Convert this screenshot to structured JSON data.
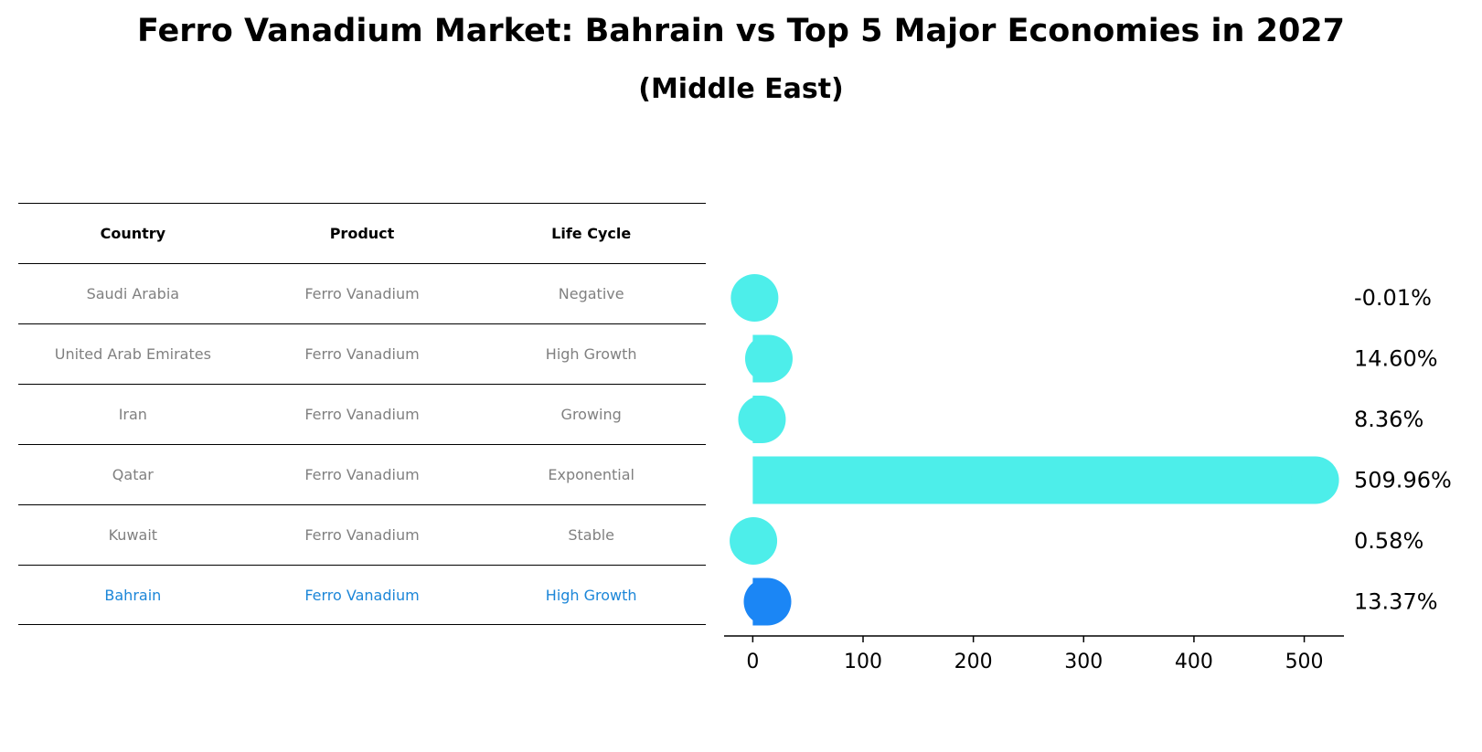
{
  "title": "Ferro Vanadium Market: Bahrain vs Top 5 Major Economies in 2027",
  "subtitle": "(Middle East)",
  "table": {
    "headers": [
      "Country",
      "Product",
      "Life Cycle"
    ],
    "rows": [
      [
        "Saudi Arabia",
        "Ferro Vanadium",
        "Negative"
      ],
      [
        "United Arab Emirates",
        "Ferro Vanadium",
        "High Growth"
      ],
      [
        "Iran",
        "Ferro Vanadium",
        "Growing"
      ],
      [
        "Qatar",
        "Ferro Vanadium",
        "Exponential"
      ],
      [
        "Kuwait",
        "Ferro Vanadium",
        "Stable"
      ],
      [
        "Bahrain",
        "Ferro Vanadium",
        "High Growth"
      ]
    ]
  },
  "colors": {
    "bar": "#4deeea",
    "highlight": "#1b86f5",
    "highlight_text": "#1b86d8",
    "muted_text": "#808080"
  },
  "chart_data": {
    "type": "bar",
    "orientation": "horizontal",
    "categories": [
      "Saudi Arabia",
      "United Arab Emirates",
      "Iran",
      "Qatar",
      "Kuwait",
      "Bahrain"
    ],
    "values": [
      -0.01,
      14.6,
      8.36,
      509.96,
      0.58,
      13.37
    ],
    "labels": [
      "-0.01%",
      "14.60%",
      "8.36%",
      "509.96%",
      "0.58%",
      "13.37%"
    ],
    "highlight": "Bahrain",
    "xticks": [
      0,
      100,
      200,
      300,
      400,
      500
    ],
    "xlim": [
      -26,
      536
    ],
    "xlabel": "",
    "ylabel": ""
  }
}
